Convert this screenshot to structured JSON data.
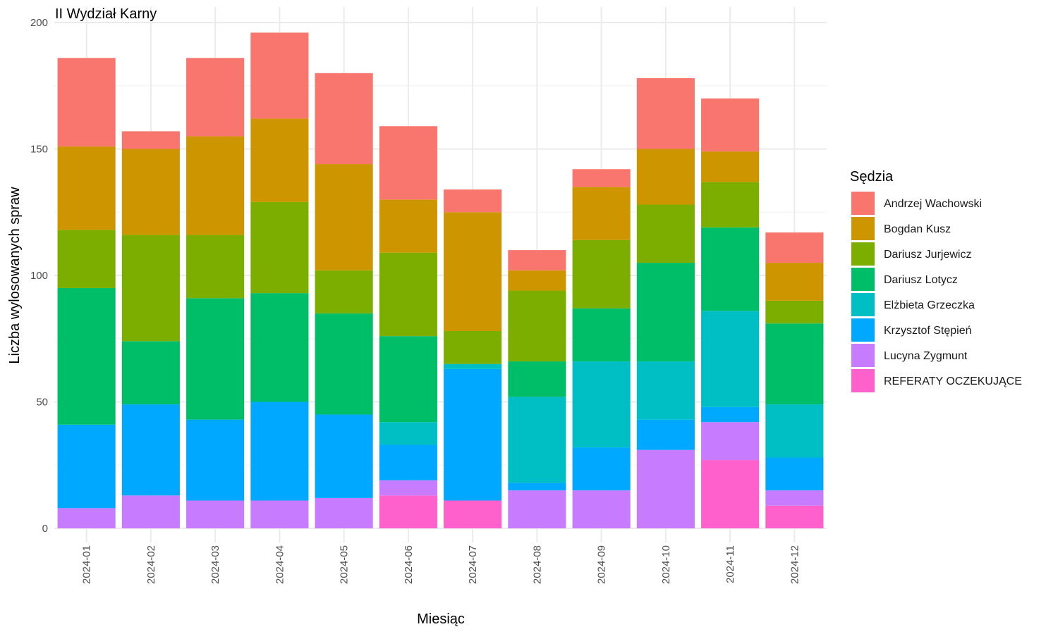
{
  "chart_data": {
    "type": "bar",
    "stacked": true,
    "title": "II Wydział Karny",
    "xlabel": "Miesiąc",
    "ylabel": "Liczba wylosowanych spraw",
    "ylim": [
      0,
      200
    ],
    "yticks": [
      0,
      50,
      100,
      150,
      200
    ],
    "grid": true,
    "legend_title": "Sędzia",
    "legend_position": "right",
    "categories": [
      "2024-01",
      "2024-02",
      "2024-03",
      "2024-04",
      "2024-05",
      "2024-06",
      "2024-07",
      "2024-08",
      "2024-09",
      "2024-10",
      "2024-11",
      "2024-12"
    ],
    "series": [
      {
        "name": "REFERATY OCZEKUJĄCE",
        "color": "#FF61CC",
        "values": [
          0,
          0,
          0,
          0,
          0,
          13,
          11,
          0,
          0,
          0,
          27,
          9
        ]
      },
      {
        "name": "Lucyna Zygmunt",
        "color": "#C77CFF",
        "values": [
          8,
          13,
          11,
          11,
          12,
          6,
          0,
          15,
          15,
          31,
          15,
          6
        ]
      },
      {
        "name": "Krzysztof Stępień",
        "color": "#00A9FF",
        "values": [
          33,
          36,
          32,
          39,
          33,
          14,
          52,
          3,
          17,
          12,
          6,
          13
        ]
      },
      {
        "name": "Elżbieta Grzeczka",
        "color": "#00BFC4",
        "values": [
          0,
          0,
          0,
          0,
          0,
          9,
          2,
          34,
          34,
          23,
          38,
          21
        ]
      },
      {
        "name": "Dariusz Lotycz",
        "color": "#00BE67",
        "values": [
          54,
          25,
          48,
          43,
          40,
          34,
          0,
          14,
          21,
          39,
          33,
          32
        ]
      },
      {
        "name": "Dariusz Jurjewicz",
        "color": "#7CAE00",
        "values": [
          23,
          42,
          25,
          36,
          17,
          33,
          13,
          28,
          27,
          23,
          18,
          9
        ]
      },
      {
        "name": "Bogdan Kusz",
        "color": "#CD9600",
        "values": [
          33,
          34,
          39,
          33,
          42,
          21,
          47,
          8,
          21,
          22,
          12,
          15
        ]
      },
      {
        "name": "Andrzej Wachowski",
        "color": "#F8766D",
        "values": [
          35,
          7,
          31,
          34,
          36,
          29,
          9,
          8,
          7,
          28,
          21,
          12
        ]
      }
    ],
    "legend_order": [
      "Andrzej Wachowski",
      "Bogdan Kusz",
      "Dariusz Jurjewicz",
      "Dariusz Lotycz",
      "Elżbieta Grzeczka",
      "Krzysztof Stępień",
      "Lucyna Zygmunt",
      "REFERATY OCZEKUJĄCE"
    ]
  }
}
